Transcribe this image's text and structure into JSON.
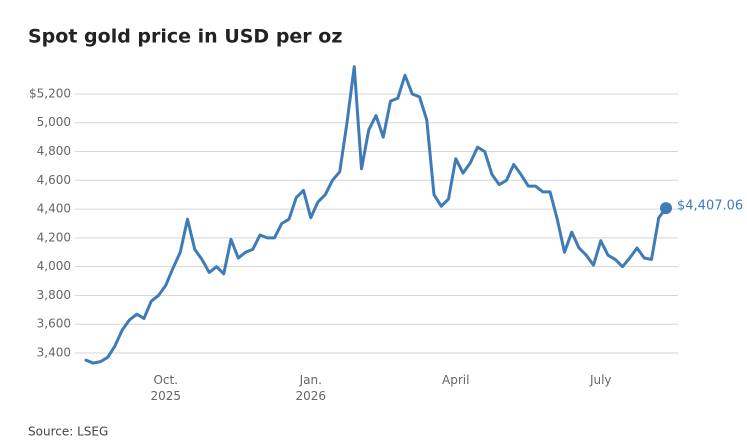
{
  "chart_data": {
    "type": "line",
    "title": "Spot gold price in USD per oz",
    "source": "Source: LSEG",
    "categories": [
      null,
      null,
      null,
      null,
      null,
      null,
      null,
      null,
      null,
      null,
      null,
      "Oct. 2025",
      null,
      null,
      null,
      null,
      null,
      null,
      null,
      null,
      null,
      null,
      null,
      null,
      null,
      null,
      null,
      null,
      null,
      null,
      null,
      "Jan. 2026",
      null,
      null,
      null,
      null,
      null,
      null,
      null,
      null,
      null,
      null,
      null,
      null,
      null,
      null,
      null,
      null,
      null,
      null,
      null,
      "April",
      null,
      null,
      null,
      null,
      null,
      null,
      null,
      null,
      null,
      null,
      null,
      null,
      null,
      null,
      null,
      null,
      null,
      null,
      null,
      "July",
      null,
      null,
      null,
      null,
      null,
      null,
      null,
      null,
      null
    ],
    "series": [
      {
        "name": "Spot gold",
        "color": "#3f7bb6",
        "values": [
          3350,
          3330,
          3340,
          3370,
          3450,
          3560,
          3630,
          3670,
          3640,
          3760,
          3800,
          3870,
          3990,
          4100,
          4330,
          4120,
          4050,
          3960,
          4000,
          3950,
          4190,
          4060,
          4100,
          4120,
          4220,
          4200,
          4200,
          4300,
          4330,
          4480,
          4530,
          4340,
          4450,
          4500,
          4600,
          4660,
          5000,
          5390,
          4680,
          4950,
          5050,
          4900,
          5150,
          5170,
          5330,
          5200,
          5180,
          5020,
          4500,
          4420,
          4470,
          4750,
          4650,
          4720,
          4830,
          4800,
          4640,
          4570,
          4600,
          4710,
          4640,
          4560,
          4560,
          4520,
          4520,
          4330,
          4100,
          4240,
          4130,
          4080,
          4010,
          4180,
          4080,
          4050,
          4000,
          4060,
          4130,
          4060,
          4050,
          4340,
          4407.06
        ],
        "value_labels": [
          null,
          null,
          null,
          null,
          null,
          null,
          null,
          null,
          null,
          null,
          null,
          null,
          null,
          null,
          null,
          null,
          null,
          null,
          null,
          null,
          null,
          null,
          null,
          null,
          null,
          null,
          null,
          null,
          null,
          null,
          null,
          null,
          null,
          null,
          null,
          null,
          null,
          null,
          null,
          null,
          null,
          null,
          null,
          null,
          null,
          null,
          null,
          null,
          null,
          null,
          null,
          null,
          null,
          null,
          null,
          null,
          null,
          null,
          null,
          null,
          null,
          null,
          null,
          null,
          null,
          null,
          null,
          null,
          null,
          null,
          null,
          null,
          null,
          null,
          null,
          null,
          null,
          null,
          null,
          null,
          "$4,407.06"
        ]
      }
    ],
    "ylim": [
      3300,
      5420
    ],
    "yticks": [
      {
        "value": 3400,
        "label": "3,400"
      },
      {
        "value": 3600,
        "label": "3,600"
      },
      {
        "value": 3800,
        "label": "3,800"
      },
      {
        "value": 4000,
        "label": "4,000"
      },
      {
        "value": 4200,
        "label": "4,200"
      },
      {
        "value": 4400,
        "label": "4,400"
      },
      {
        "value": 4600,
        "label": "4,600"
      },
      {
        "value": 4800,
        "label": "4,800"
      },
      {
        "value": 5000,
        "label": "5,000"
      },
      {
        "value": 5200,
        "label": "$5,200"
      }
    ],
    "grid": true
  }
}
